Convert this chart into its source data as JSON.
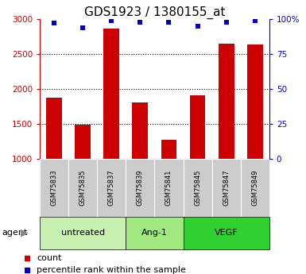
{
  "title": "GDS1923 / 1380155_at",
  "samples": [
    "GSM75833",
    "GSM75835",
    "GSM75837",
    "GSM75839",
    "GSM75841",
    "GSM75845",
    "GSM75847",
    "GSM75849"
  ],
  "counts": [
    1880,
    1490,
    2870,
    1810,
    1270,
    1910,
    2650,
    2640
  ],
  "percentiles": [
    97,
    94,
    99,
    98,
    98,
    95,
    98,
    99
  ],
  "groups": [
    {
      "label": "untreated",
      "indices": [
        0,
        1,
        2
      ],
      "color": "#c8f0b0"
    },
    {
      "label": "Ang-1",
      "indices": [
        3,
        4
      ],
      "color": "#a0e880"
    },
    {
      "label": "VEGF",
      "indices": [
        5,
        6,
        7
      ],
      "color": "#30d030"
    }
  ],
  "ylim_left": [
    1000,
    3000
  ],
  "ylim_right": [
    0,
    100
  ],
  "yticks_left": [
    1000,
    1500,
    2000,
    2500,
    3000
  ],
  "yticks_right": [
    0,
    25,
    50,
    75,
    100
  ],
  "ytick_labels_right": [
    "0",
    "25",
    "50",
    "75",
    "100%"
  ],
  "bar_color": "#cc0000",
  "dot_color": "#0000cc",
  "title_fontsize": 11,
  "left_axis_color": "#cc0000",
  "right_axis_color": "#0000cc",
  "bar_bottom": 1000,
  "sample_box_color": "#cccccc",
  "legend_count_label": "count",
  "legend_percentile_label": "percentile rank within the sample"
}
